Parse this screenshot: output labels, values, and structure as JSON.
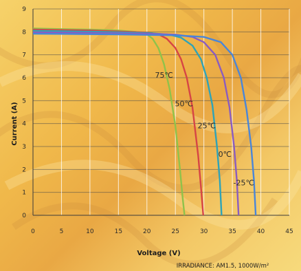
{
  "chart_data": {
    "type": "line",
    "title": "",
    "xlabel": "Voltage (V)",
    "ylabel": "Current (A)",
    "xlim": [
      0,
      45
    ],
    "ylim": [
      0,
      9
    ],
    "x_ticks": [
      "0",
      "5",
      "10",
      "15",
      "20",
      "25",
      "30",
      "35",
      "40",
      "45"
    ],
    "y_ticks": [
      "0",
      "1",
      "2",
      "3",
      "4",
      "5",
      "6",
      "7",
      "8",
      "9"
    ],
    "grid": true,
    "legend": "inline labels",
    "footnote": "IRRADIANCE:  AM1.5,   1000W/m²",
    "series": [
      {
        "name": "75℃",
        "color": "#8fc24a",
        "points": [
          [
            0,
            8.15
          ],
          [
            5,
            8.12
          ],
          [
            10,
            8.1
          ],
          [
            15,
            8.06
          ],
          [
            18,
            8.0
          ],
          [
            20,
            7.9
          ],
          [
            21,
            7.7
          ],
          [
            22,
            7.3
          ],
          [
            23,
            6.6
          ],
          [
            24,
            5.5
          ],
          [
            25,
            3.9
          ],
          [
            25.8,
            2.0
          ],
          [
            26.3,
            0.7
          ],
          [
            26.6,
            0
          ]
        ]
      },
      {
        "name": "50℃",
        "color": "#d64545",
        "points": [
          [
            0,
            8.1
          ],
          [
            5,
            8.08
          ],
          [
            10,
            8.06
          ],
          [
            15,
            8.02
          ],
          [
            20,
            7.97
          ],
          [
            22,
            7.9
          ],
          [
            23.5,
            7.7
          ],
          [
            25,
            7.3
          ],
          [
            26,
            6.8
          ],
          [
            27,
            6.0
          ],
          [
            28,
            4.7
          ],
          [
            29,
            2.6
          ],
          [
            29.5,
            1.2
          ],
          [
            29.9,
            0
          ]
        ]
      },
      {
        "name": "25℃",
        "color": "#2ea3b8",
        "points": [
          [
            0,
            8.05
          ],
          [
            5,
            8.03
          ],
          [
            10,
            8.01
          ],
          [
            15,
            7.98
          ],
          [
            20,
            7.95
          ],
          [
            24,
            7.88
          ],
          [
            26,
            7.75
          ],
          [
            28,
            7.4
          ],
          [
            29.5,
            6.8
          ],
          [
            30.5,
            6.0
          ],
          [
            31.5,
            4.8
          ],
          [
            32.3,
            3.0
          ],
          [
            32.8,
            1.5
          ],
          [
            33.1,
            0
          ]
        ]
      },
      {
        "name": "0℃",
        "color": "#8a5cc0",
        "points": [
          [
            0,
            7.98
          ],
          [
            5,
            7.97
          ],
          [
            10,
            7.96
          ],
          [
            15,
            7.94
          ],
          [
            20,
            7.92
          ],
          [
            25,
            7.88
          ],
          [
            28,
            7.78
          ],
          [
            30,
            7.55
          ],
          [
            32,
            7.0
          ],
          [
            33.5,
            6.0
          ],
          [
            34.5,
            4.7
          ],
          [
            35.3,
            3.0
          ],
          [
            35.8,
            1.5
          ],
          [
            36.1,
            0
          ]
        ]
      },
      {
        "name": "-25℃",
        "color": "#4a86d8",
        "points": [
          [
            0,
            7.92
          ],
          [
            5,
            7.91
          ],
          [
            10,
            7.9
          ],
          [
            15,
            7.89
          ],
          [
            20,
            7.87
          ],
          [
            25,
            7.85
          ],
          [
            30,
            7.78
          ],
          [
            33,
            7.55
          ],
          [
            35,
            7.0
          ],
          [
            36.5,
            6.0
          ],
          [
            37.5,
            4.6
          ],
          [
            38.3,
            3.0
          ],
          [
            38.8,
            1.5
          ],
          [
            39.1,
            0
          ]
        ]
      }
    ],
    "curve_labels": [
      {
        "text": "75℃",
        "x": 23.0,
        "y": 6.0
      },
      {
        "text": "50℃",
        "x": 26.5,
        "y": 4.75
      },
      {
        "text": "25℃",
        "x": 30.5,
        "y": 3.8
      },
      {
        "text": "0℃",
        "x": 33.7,
        "y": 2.55
      },
      {
        "text": "-25℃",
        "x": 37.0,
        "y": 1.3
      }
    ]
  }
}
